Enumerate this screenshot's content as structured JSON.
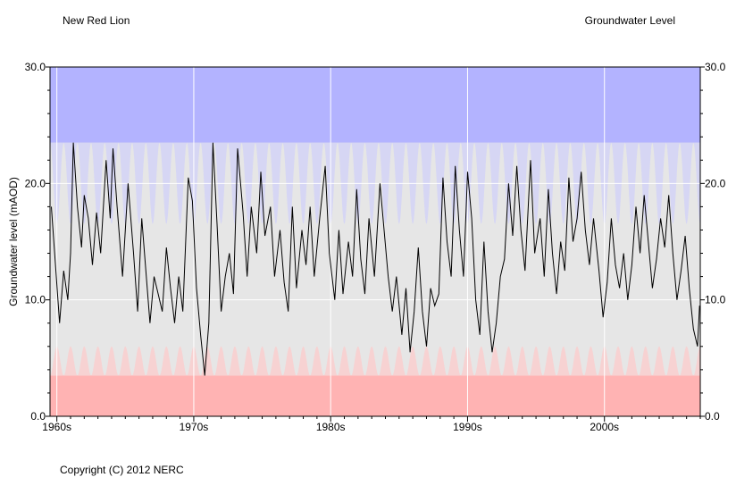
{
  "header": {
    "site_name": "New Red Lion",
    "chart_title": "Groundwater Level"
  },
  "footer": {
    "copyright": "Copyright (C) 2012 NERC"
  },
  "colors": {
    "high_band": "#b3b3ff",
    "high_band_light": "#d6d6f4",
    "normal_band": "#e6e6e6",
    "low_band": "#ffb3b3",
    "low_band_light": "#f7d2d2",
    "line": "#000000",
    "grid": "#ffffff"
  },
  "chart_data": {
    "type": "line",
    "title": "Groundwater Level",
    "ylabel": "Groundwater level (mAOD)",
    "xlabel": "",
    "xlim": [
      1959.5,
      2007.0
    ],
    "ylim": [
      0,
      30
    ],
    "x_ticks": [
      {
        "value": 1960,
        "label": "1960s"
      },
      {
        "value": 1970,
        "label": "1970s"
      },
      {
        "value": 1980,
        "label": "1980s"
      },
      {
        "value": 1990,
        "label": "1990s"
      },
      {
        "value": 2000,
        "label": "2000s"
      }
    ],
    "y_ticks": [
      {
        "value": 0,
        "label": "0.0"
      },
      {
        "value": 10,
        "label": "10.0"
      },
      {
        "value": 20,
        "label": "20.0"
      },
      {
        "value": 30,
        "label": "30.0"
      }
    ],
    "right_axis": true,
    "grid": true,
    "bands": {
      "high_threshold_range": [
        16.5,
        23.5
      ],
      "low_threshold_range": [
        3.5,
        6.0
      ]
    },
    "series": [
      {
        "points": [
          [
            1959.6,
            18.0
          ],
          [
            1959.9,
            13.0
          ],
          [
            1960.2,
            8.0
          ],
          [
            1960.5,
            12.5
          ],
          [
            1960.8,
            10.0
          ],
          [
            1961.0,
            14.0
          ],
          [
            1961.2,
            23.5
          ],
          [
            1961.5,
            18.0
          ],
          [
            1961.8,
            14.5
          ],
          [
            1962.0,
            19.0
          ],
          [
            1962.3,
            17.0
          ],
          [
            1962.6,
            13.0
          ],
          [
            1962.9,
            17.5
          ],
          [
            1963.2,
            14.0
          ],
          [
            1963.6,
            22.0
          ],
          [
            1963.9,
            17.0
          ],
          [
            1964.1,
            23.0
          ],
          [
            1964.4,
            18.0
          ],
          [
            1964.8,
            12.0
          ],
          [
            1965.2,
            20.0
          ],
          [
            1965.6,
            14.0
          ],
          [
            1965.9,
            9.0
          ],
          [
            1966.2,
            17.0
          ],
          [
            1966.5,
            12.5
          ],
          [
            1966.8,
            8.0
          ],
          [
            1967.1,
            12.0
          ],
          [
            1967.4,
            10.5
          ],
          [
            1967.7,
            9.0
          ],
          [
            1968.0,
            14.5
          ],
          [
            1968.3,
            11.0
          ],
          [
            1968.6,
            8.0
          ],
          [
            1968.9,
            12.0
          ],
          [
            1969.2,
            9.0
          ],
          [
            1969.6,
            20.5
          ],
          [
            1969.9,
            18.5
          ],
          [
            1970.2,
            11.0
          ],
          [
            1970.5,
            7.0
          ],
          [
            1970.8,
            3.5
          ],
          [
            1971.1,
            8.0
          ],
          [
            1971.4,
            23.5
          ],
          [
            1971.7,
            16.5
          ],
          [
            1972.0,
            9.0
          ],
          [
            1972.3,
            12.0
          ],
          [
            1972.6,
            14.0
          ],
          [
            1972.9,
            10.5
          ],
          [
            1973.2,
            23.0
          ],
          [
            1973.6,
            17.5
          ],
          [
            1973.9,
            12.0
          ],
          [
            1974.2,
            18.0
          ],
          [
            1974.6,
            14.0
          ],
          [
            1974.9,
            21.0
          ],
          [
            1975.2,
            15.5
          ],
          [
            1975.6,
            18.0
          ],
          [
            1975.9,
            12.0
          ],
          [
            1976.3,
            16.0
          ],
          [
            1976.6,
            11.5
          ],
          [
            1976.9,
            9.0
          ],
          [
            1977.2,
            18.0
          ],
          [
            1977.5,
            11.0
          ],
          [
            1977.9,
            16.0
          ],
          [
            1978.2,
            13.0
          ],
          [
            1978.5,
            18.0
          ],
          [
            1978.8,
            12.0
          ],
          [
            1979.2,
            17.0
          ],
          [
            1979.6,
            21.5
          ],
          [
            1979.9,
            14.0
          ],
          [
            1980.3,
            10.0
          ],
          [
            1980.6,
            16.0
          ],
          [
            1980.9,
            10.5
          ],
          [
            1981.3,
            15.0
          ],
          [
            1981.6,
            12.0
          ],
          [
            1981.9,
            19.5
          ],
          [
            1982.2,
            13.5
          ],
          [
            1982.5,
            10.5
          ],
          [
            1982.8,
            17.0
          ],
          [
            1983.2,
            12.0
          ],
          [
            1983.6,
            20.0
          ],
          [
            1983.9,
            16.0
          ],
          [
            1984.2,
            12.0
          ],
          [
            1984.5,
            9.0
          ],
          [
            1984.8,
            12.0
          ],
          [
            1985.2,
            7.0
          ],
          [
            1985.5,
            11.0
          ],
          [
            1985.8,
            5.5
          ],
          [
            1986.1,
            9.0
          ],
          [
            1986.4,
            14.5
          ],
          [
            1986.7,
            9.0
          ],
          [
            1987.0,
            6.0
          ],
          [
            1987.3,
            11.0
          ],
          [
            1987.6,
            9.5
          ],
          [
            1987.9,
            10.5
          ],
          [
            1988.2,
            20.5
          ],
          [
            1988.5,
            15.0
          ],
          [
            1988.8,
            12.0
          ],
          [
            1989.1,
            21.5
          ],
          [
            1989.4,
            16.0
          ],
          [
            1989.7,
            12.0
          ],
          [
            1990.0,
            21.0
          ],
          [
            1990.3,
            17.0
          ],
          [
            1990.6,
            10.0
          ],
          [
            1990.9,
            7.0
          ],
          [
            1991.2,
            15.0
          ],
          [
            1991.5,
            9.0
          ],
          [
            1991.8,
            5.5
          ],
          [
            1992.1,
            8.0
          ],
          [
            1992.4,
            12.0
          ],
          [
            1992.7,
            13.5
          ],
          [
            1993.0,
            20.0
          ],
          [
            1993.3,
            15.5
          ],
          [
            1993.6,
            21.5
          ],
          [
            1993.9,
            16.0
          ],
          [
            1994.2,
            12.5
          ],
          [
            1994.6,
            22.0
          ],
          [
            1994.9,
            14.0
          ],
          [
            1995.3,
            17.0
          ],
          [
            1995.6,
            12.0
          ],
          [
            1995.9,
            19.5
          ],
          [
            1996.2,
            14.0
          ],
          [
            1996.5,
            10.5
          ],
          [
            1996.8,
            15.0
          ],
          [
            1997.1,
            12.5
          ],
          [
            1997.4,
            20.5
          ],
          [
            1997.7,
            15.0
          ],
          [
            1998.0,
            17.0
          ],
          [
            1998.3,
            21.0
          ],
          [
            1998.6,
            16.0
          ],
          [
            1998.9,
            13.0
          ],
          [
            1999.2,
            17.0
          ],
          [
            1999.6,
            12.5
          ],
          [
            1999.9,
            8.5
          ],
          [
            2000.2,
            11.5
          ],
          [
            2000.5,
            17.0
          ],
          [
            2000.8,
            13.0
          ],
          [
            2001.1,
            11.0
          ],
          [
            2001.4,
            14.0
          ],
          [
            2001.7,
            10.0
          ],
          [
            2002.0,
            13.0
          ],
          [
            2002.3,
            18.0
          ],
          [
            2002.6,
            14.0
          ],
          [
            2002.9,
            19.0
          ],
          [
            2003.2,
            15.0
          ],
          [
            2003.5,
            11.0
          ],
          [
            2003.8,
            13.5
          ],
          [
            2004.1,
            17.0
          ],
          [
            2004.4,
            14.5
          ],
          [
            2004.7,
            19.0
          ],
          [
            2005.0,
            14.0
          ],
          [
            2005.3,
            10.0
          ],
          [
            2005.6,
            12.5
          ],
          [
            2005.9,
            15.5
          ],
          [
            2006.2,
            11.0
          ],
          [
            2006.5,
            7.5
          ],
          [
            2006.8,
            6.0
          ],
          [
            2006.95,
            9.5
          ]
        ]
      }
    ]
  }
}
